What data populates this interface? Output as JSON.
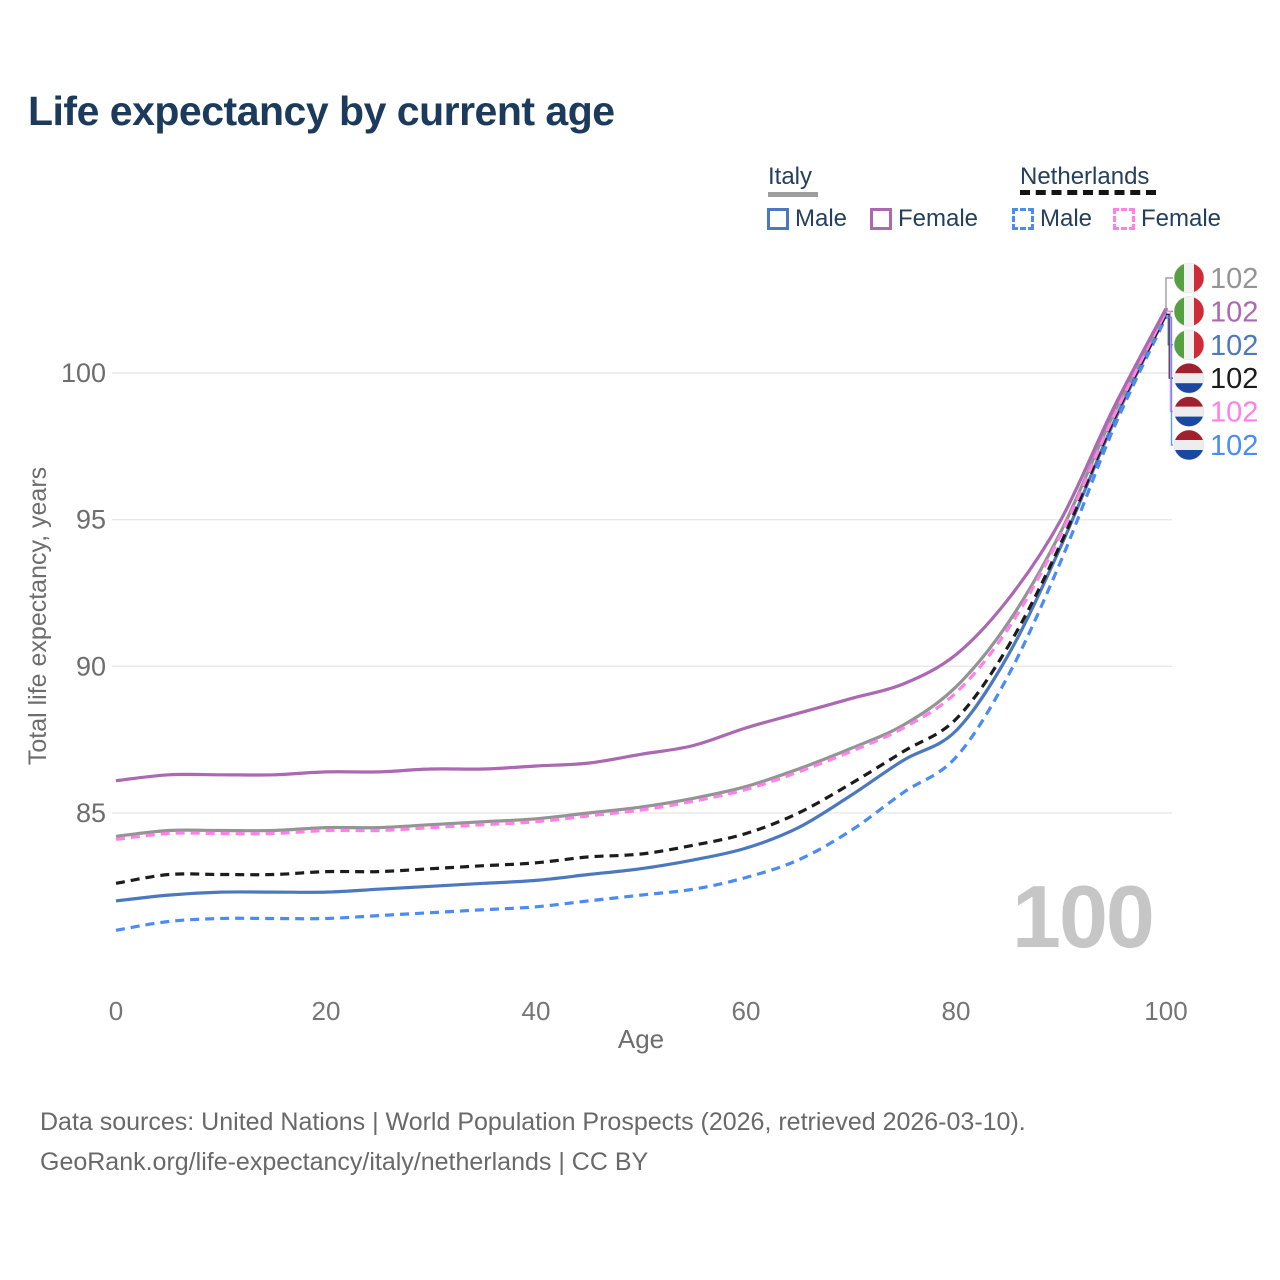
{
  "title": "Life expectancy by current age",
  "watermark": "100",
  "legend": {
    "italy": {
      "label": "Italy",
      "male_label": "Male",
      "female_label": "Female"
    },
    "netherlands": {
      "label": "Netherlands",
      "male_label": "Male",
      "female_label": "Female"
    }
  },
  "footer": {
    "line1": "Data sources: United Nations | World Population Prospects (2026, retrieved 2026-03-10).",
    "line2": "GeoRank.org/life-expectancy/italy/netherlands | CC BY"
  },
  "colors": {
    "title_text": "#1c3a5c",
    "legend_text": "#24405e",
    "axis_text": "#6e6e6e",
    "tick_text": "#757575",
    "gridline": "#e8e8e8",
    "watermark": "#c6c6c6",
    "footer_text": "#696969",
    "italy_underline": "#9e9e9e",
    "netherlands_underline": "#141414"
  },
  "flags": {
    "italy": {
      "stripes": "vertical",
      "colors": [
        "#55a041",
        "#f2f2f2",
        "#cf2b36"
      ]
    },
    "netherlands": {
      "stripes": "horizontal",
      "colors": [
        "#a1202e",
        "#ededed",
        "#1a47a0"
      ]
    }
  },
  "chart_data": {
    "type": "line",
    "title": "Life expectancy by current age",
    "xlabel": "Age",
    "ylabel": "Total life expectancy, years",
    "xticks": [
      0,
      20,
      40,
      60,
      80,
      100
    ],
    "yticks": [
      85,
      90,
      95,
      100
    ],
    "xlim": [
      0,
      100
    ],
    "ylim": [
      80.5,
      103
    ],
    "grid": "horizontal",
    "legend_position": "top-right",
    "x": [
      0,
      5,
      10,
      15,
      20,
      25,
      30,
      35,
      40,
      45,
      50,
      55,
      60,
      65,
      70,
      75,
      80,
      85,
      90,
      95,
      100
    ],
    "series": [
      {
        "key": "italy_total",
        "name": "Italy (both sexes)",
        "country": "italy",
        "color": "#949494",
        "dash": false,
        "end_label": "102",
        "label_row": 0,
        "values": [
          84.2,
          84.4,
          84.4,
          84.4,
          84.5,
          84.5,
          84.6,
          84.7,
          84.8,
          85.0,
          85.2,
          85.5,
          85.9,
          86.5,
          87.2,
          88.0,
          89.3,
          91.5,
          94.6,
          98.6,
          102.1
        ]
      },
      {
        "key": "italy_female",
        "name": "Italy Female",
        "country": "italy",
        "color": "#ac68b2",
        "dash": false,
        "end_label": "102",
        "label_row": 1,
        "values": [
          86.1,
          86.3,
          86.3,
          86.3,
          86.4,
          86.4,
          86.5,
          86.5,
          86.6,
          86.7,
          87.0,
          87.3,
          87.9,
          88.4,
          88.9,
          89.4,
          90.4,
          92.3,
          95.0,
          98.8,
          102.2
        ]
      },
      {
        "key": "italy_male",
        "name": "Italy Male",
        "country": "italy",
        "color": "#4c79bd",
        "dash": false,
        "end_label": "102",
        "label_row": 2,
        "values": [
          82.0,
          82.2,
          82.3,
          82.3,
          82.3,
          82.4,
          82.5,
          82.6,
          82.7,
          82.9,
          83.1,
          83.4,
          83.8,
          84.5,
          85.6,
          86.8,
          87.8,
          90.4,
          94.1,
          98.3,
          102.0
        ]
      },
      {
        "key": "nl_total",
        "name": "Netherlands (both sexes)",
        "country": "netherlands",
        "color": "#1c1c1c",
        "dash": true,
        "end_label": "102",
        "label_row": 3,
        "values": [
          82.6,
          82.9,
          82.9,
          82.9,
          83.0,
          83.0,
          83.1,
          83.2,
          83.3,
          83.5,
          83.6,
          83.9,
          84.3,
          85.0,
          86.0,
          87.1,
          88.2,
          90.7,
          94.2,
          98.4,
          102.0
        ]
      },
      {
        "key": "nl_female",
        "name": "Netherlands Female",
        "country": "netherlands",
        "color": "#ff80e8",
        "dash": true,
        "end_label": "102",
        "label_row": 4,
        "values": [
          84.1,
          84.3,
          84.3,
          84.3,
          84.4,
          84.4,
          84.5,
          84.6,
          84.7,
          84.9,
          85.1,
          85.4,
          85.8,
          86.4,
          87.1,
          87.9,
          89.1,
          91.3,
          94.5,
          98.5,
          102.1
        ]
      },
      {
        "key": "nl_male",
        "name": "Netherlands Male",
        "country": "netherlands",
        "color": "#4b8bf4",
        "dash": true,
        "end_label": "102",
        "label_row": 5,
        "values": [
          81.0,
          81.3,
          81.4,
          81.4,
          81.4,
          81.5,
          81.6,
          81.7,
          81.8,
          82.0,
          82.2,
          82.4,
          82.8,
          83.4,
          84.4,
          85.7,
          86.9,
          89.7,
          93.6,
          98.1,
          101.9
        ]
      }
    ]
  }
}
